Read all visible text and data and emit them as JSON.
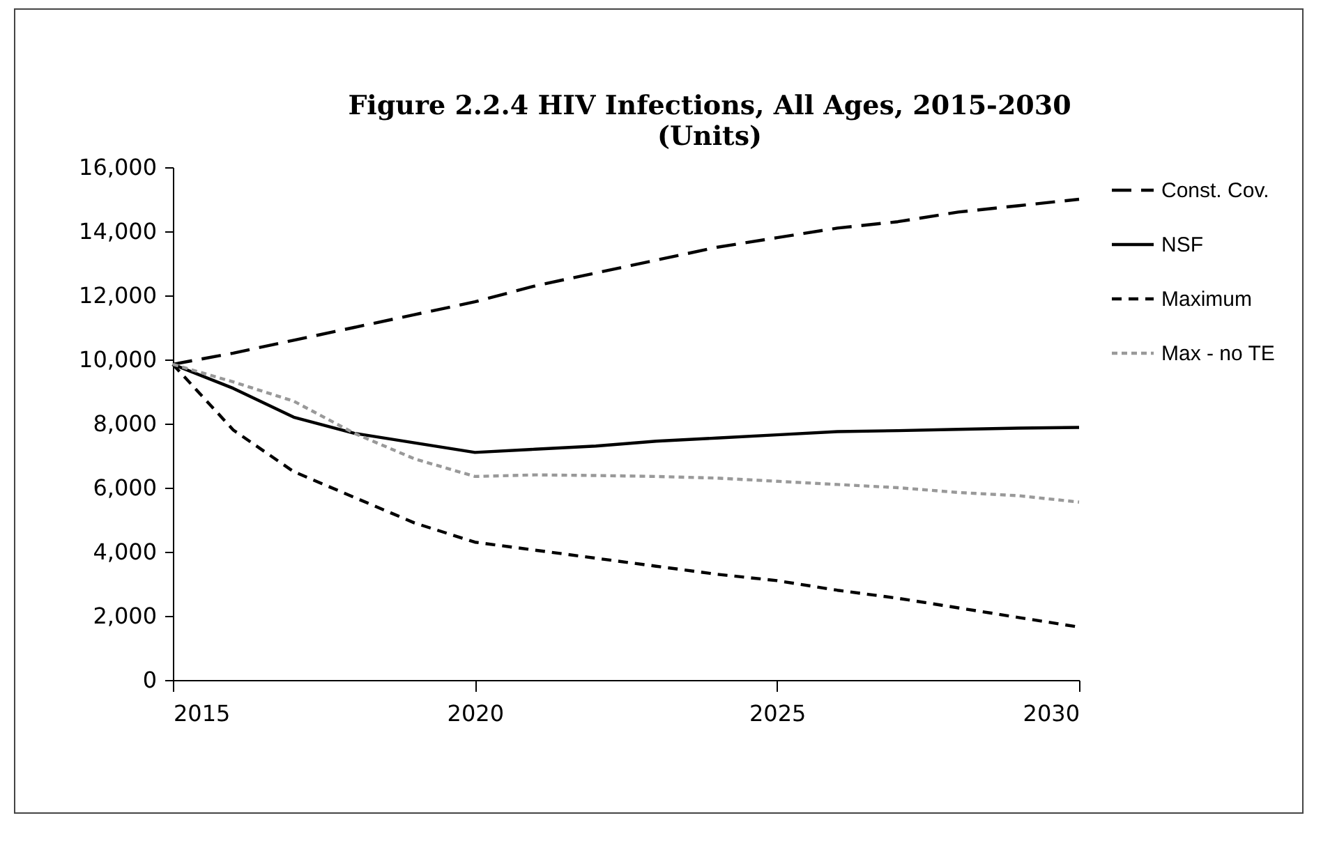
{
  "chart_data": {
    "type": "line",
    "title": "Figure 2.2.4 HIV Infections, All Ages, 2015-2030",
    "subtitle": "(Units)",
    "x": [
      2015,
      2016,
      2017,
      2018,
      2019,
      2020,
      2021,
      2022,
      2023,
      2024,
      2025,
      2026,
      2027,
      2028,
      2029,
      2030
    ],
    "xlim": [
      2015,
      2030
    ],
    "xticks": [
      2015,
      2020,
      2025,
      2030
    ],
    "ylim": [
      0,
      16000
    ],
    "yticks": [
      {
        "value": 0,
        "label": "0"
      },
      {
        "value": 2000,
        "label": "2,000"
      },
      {
        "value": 4000,
        "label": "4,000"
      },
      {
        "value": 6000,
        "label": "6,000"
      },
      {
        "value": 8000,
        "label": "8,000"
      },
      {
        "value": 10000,
        "label": "10,000"
      },
      {
        "value": 12000,
        "label": "12,000"
      },
      {
        "value": 14000,
        "label": "14,000"
      },
      {
        "value": 16000,
        "label": "16,000"
      }
    ],
    "grid": false,
    "legend": "right",
    "marker": "none",
    "series": [
      {
        "name": "Const. Cov.",
        "color": "#000000",
        "line_style": "dashed",
        "values": [
          9850,
          10200,
          10600,
          11000,
          11400,
          11800,
          12300,
          12700,
          13100,
          13500,
          13800,
          14100,
          14300,
          14600,
          14800,
          15000
        ]
      },
      {
        "name": "NSF",
        "color": "#000000",
        "line_style": "solid",
        "values": [
          9850,
          9100,
          8200,
          7700,
          7400,
          7100,
          7200,
          7300,
          7450,
          7550,
          7650,
          7750,
          7780,
          7820,
          7860,
          7880
        ]
      },
      {
        "name": "Maximum",
        "color": "#000000",
        "line_style": "dashed",
        "values": [
          9850,
          7800,
          6500,
          5700,
          4900,
          4300,
          4050,
          3800,
          3550,
          3300,
          3100,
          2800,
          2550,
          2250,
          1950,
          1650
        ]
      },
      {
        "name": "Max - no TE",
        "color": "#999999",
        "line_style": "dotted",
        "values": [
          9850,
          9300,
          8700,
          7700,
          6900,
          6350,
          6400,
          6380,
          6350,
          6300,
          6200,
          6100,
          6000,
          5850,
          5750,
          5550
        ]
      }
    ]
  }
}
